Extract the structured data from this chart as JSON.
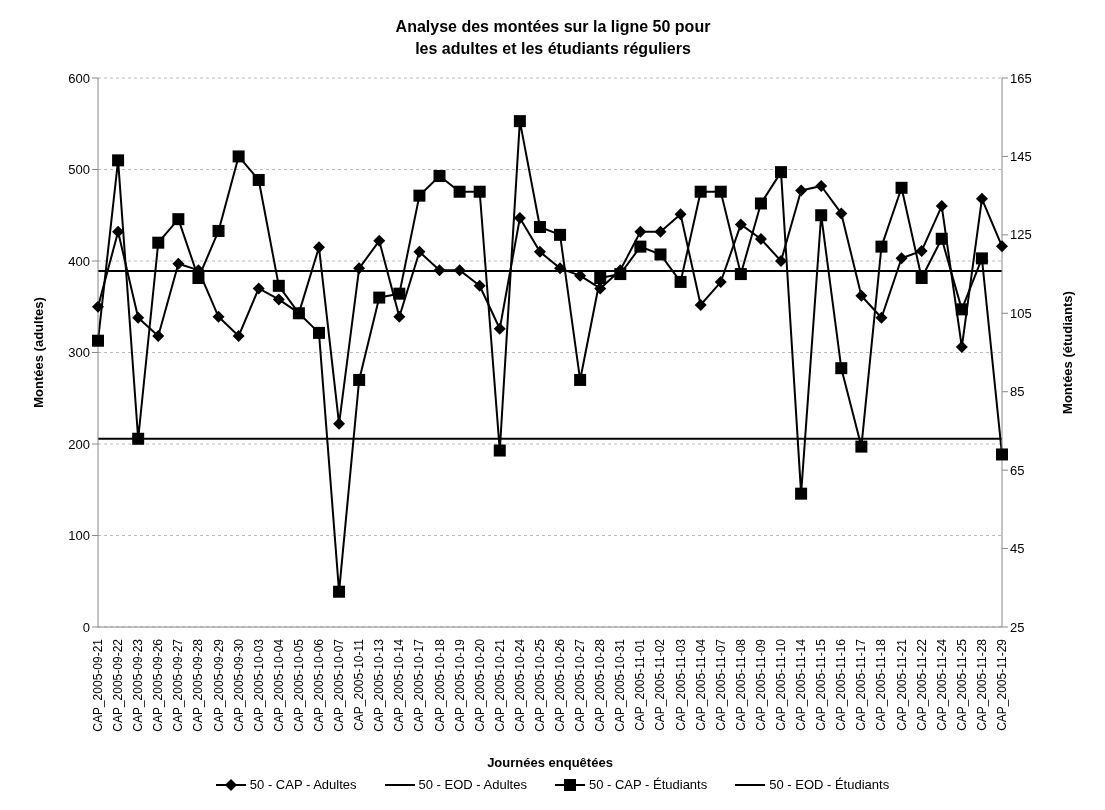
{
  "chart_data": {
    "type": "line",
    "title": "Analyse des montées sur la ligne 50 pour\nles adultes et les étudiants réguliers",
    "xlabel": "Journées enquêtées",
    "ylabel": "Montées (adultes)",
    "y2label": "Montées (étudiants)",
    "categories": [
      "CAP_2005-09-21",
      "CAP_2005-09-22",
      "CAP_2005-09-23",
      "CAP_2005-09-26",
      "CAP_2005-09-27",
      "CAP_2005-09-28",
      "CAP_2005-09-29",
      "CAP_2005-09-30",
      "CAP_2005-10-03",
      "CAP_2005-10-04",
      "CAP_2005-10-05",
      "CAP_2005-10-06",
      "CAP_2005-10-07",
      "CAP_2005-10-11",
      "CAP_2005-10-13",
      "CAP_2005-10-14",
      "CAP_2005-10-17",
      "CAP_2005-10-18",
      "CAP_2005-10-19",
      "CAP_2005-10-20",
      "CAP_2005-10-21",
      "CAP_2005-10-24",
      "CAP_2005-10-25",
      "CAP_2005-10-26",
      "CAP_2005-10-27",
      "CAP_2005-10-28",
      "CAP_2005-10-31",
      "CAP_2005-11-01",
      "CAP_2005-11-02",
      "CAP_2005-11-03",
      "CAP_2005-11-04",
      "CAP_2005-11-07",
      "CAP_2005-11-08",
      "CAP_2005-11-09",
      "CAP_2005-11-10",
      "CAP_2005-11-14",
      "CAP_2005-11-15",
      "CAP_2005-11-16",
      "CAP_2005-11-17",
      "CAP_2005-11-18",
      "CAP_2005-11-21",
      "CAP_2005-11-22",
      "CAP_2005-11-24",
      "CAP_2005-11-25",
      "CAP_2005-11-28",
      "CAP_2005-11-29"
    ],
    "series": [
      {
        "name": "50 - CAP - Adultes",
        "color": "#000000",
        "marker": "diamond",
        "values": [
          350,
          432,
          338,
          318,
          397,
          390,
          339,
          318,
          370,
          358,
          343,
          415,
          222,
          392,
          422,
          339,
          410,
          390,
          390,
          373,
          326,
          447,
          410,
          392,
          384,
          370,
          390,
          432,
          432,
          451,
          352,
          377,
          440,
          424,
          400,
          477,
          482,
          452,
          362,
          338,
          403,
          411,
          460,
          306,
          468,
          416
        ]
      },
      {
        "name": "50 - EOD - Adultes",
        "color": "#000000",
        "marker": "none",
        "values": [
          389,
          389,
          389,
          389,
          389,
          389,
          389,
          389,
          389,
          389,
          389,
          389,
          389,
          389,
          389,
          389,
          389,
          389,
          389,
          389,
          389,
          389,
          389,
          389,
          389,
          389,
          389,
          389,
          389,
          389,
          389,
          389,
          389,
          389,
          389,
          389,
          389,
          389,
          389,
          389,
          389,
          389,
          389,
          389,
          389,
          389
        ]
      },
      {
        "name": "50 - CAP - Étudiants",
        "color": "#000000",
        "marker": "square",
        "axis": "y2",
        "values": [
          98,
          144,
          73,
          123,
          129,
          114,
          126,
          145,
          139,
          112,
          105,
          100,
          34,
          88,
          109,
          110,
          135,
          140,
          136,
          136,
          70,
          154,
          127,
          125,
          88,
          114,
          115,
          122,
          120,
          113,
          136,
          136,
          115,
          133,
          141,
          59,
          130,
          91,
          71,
          122,
          137,
          114,
          124,
          106,
          119,
          69
        ]
      },
      {
        "name": "50 - EOD - Étudiants",
        "color": "#000000",
        "marker": "none",
        "axis": "y2",
        "values": [
          73,
          73,
          73,
          73,
          73,
          73,
          73,
          73,
          73,
          73,
          73,
          73,
          73,
          73,
          73,
          73,
          73,
          73,
          73,
          73,
          73,
          73,
          73,
          73,
          73,
          73,
          73,
          73,
          73,
          73,
          73,
          73,
          73,
          73,
          73,
          73,
          73,
          73,
          73,
          73,
          73,
          73,
          73,
          73,
          73,
          73
        ]
      }
    ],
    "ylim": [
      0,
      600
    ],
    "yticks": [
      0,
      100,
      200,
      300,
      400,
      500,
      600
    ],
    "y2lim": [
      25,
      165
    ],
    "y2ticks": [
      25,
      45,
      65,
      85,
      105,
      125,
      145,
      165
    ],
    "grid": "y",
    "legend": "bottom",
    "line_style": "solid"
  }
}
